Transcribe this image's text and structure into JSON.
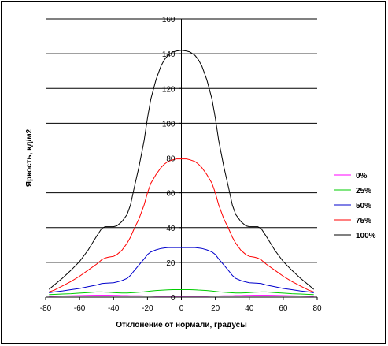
{
  "chart_data": {
    "type": "line",
    "title": "",
    "xlabel": "Отклонение от нормали, градусы",
    "ylabel": "Яркость, кд/м2",
    "xlim": [
      -80,
      80
    ],
    "ylim": [
      0,
      160
    ],
    "x_ticks": [
      -80,
      -60,
      -40,
      -20,
      0,
      20,
      40,
      60,
      80
    ],
    "y_ticks": [
      0,
      20,
      40,
      60,
      80,
      100,
      120,
      140,
      160
    ],
    "grid": "horizontal",
    "legend_position": "right",
    "x": [
      -78,
      -75,
      -70,
      -65,
      -60,
      -55,
      -50,
      -47,
      -45,
      -43,
      -40,
      -38,
      -35,
      -32,
      -30,
      -28,
      -25,
      -22,
      -20,
      -18,
      -15,
      -12,
      -10,
      -8,
      -5,
      -3,
      0,
      3,
      5,
      8,
      10,
      12,
      15,
      18,
      20,
      22,
      25,
      28,
      30,
      32,
      35,
      38,
      40,
      43,
      45,
      47,
      50,
      55,
      60,
      65,
      70,
      75,
      78
    ],
    "series": [
      {
        "name": "0%",
        "color": "#ff00ff",
        "values": [
          0.5,
          0.6,
          0.7,
          0.8,
          0.9,
          1.0,
          1.1,
          1.1,
          1.1,
          1.1,
          1.0,
          1.0,
          0.9,
          0.9,
          0.8,
          0.8,
          0.8,
          0.7,
          0.7,
          0.7,
          0.6,
          0.6,
          0.6,
          0.6,
          0.6,
          0.6,
          0.6,
          0.6,
          0.6,
          0.6,
          0.6,
          0.6,
          0.6,
          0.7,
          0.7,
          0.7,
          0.8,
          0.8,
          0.8,
          0.9,
          0.9,
          1.0,
          1.0,
          1.1,
          1.1,
          1.1,
          1.1,
          1.0,
          0.9,
          0.8,
          0.7,
          0.6,
          0.5
        ]
      },
      {
        "name": "25%",
        "color": "#00cc00",
        "values": [
          1.5,
          1.6,
          1.8,
          2.0,
          2.3,
          2.6,
          3.0,
          3.0,
          2.9,
          2.8,
          2.6,
          2.5,
          2.4,
          2.4,
          2.5,
          2.6,
          2.8,
          3.1,
          3.3,
          3.5,
          3.8,
          4.0,
          4.1,
          4.2,
          4.3,
          4.3,
          4.3,
          4.3,
          4.3,
          4.2,
          4.1,
          4.0,
          3.8,
          3.5,
          3.3,
          3.1,
          2.8,
          2.6,
          2.5,
          2.4,
          2.4,
          2.5,
          2.6,
          2.8,
          2.9,
          3.0,
          3.0,
          2.6,
          2.3,
          2.0,
          1.8,
          1.6,
          1.5
        ]
      },
      {
        "name": "50%",
        "color": "#0000cc",
        "values": [
          2.5,
          3.0,
          3.6,
          4.3,
          5.0,
          6.0,
          7.0,
          7.8,
          8.0,
          8.1,
          8.3,
          8.7,
          9.5,
          10.8,
          12.5,
          15.0,
          18.5,
          22.0,
          24.5,
          26.0,
          27.2,
          28.0,
          28.3,
          28.5,
          28.5,
          28.5,
          28.5,
          28.5,
          28.5,
          28.5,
          28.3,
          28.0,
          27.2,
          26.0,
          24.5,
          22.0,
          18.5,
          15.0,
          12.5,
          10.8,
          9.5,
          8.7,
          8.3,
          8.1,
          8.0,
          7.8,
          7.0,
          6.0,
          5.0,
          4.3,
          3.6,
          3.0,
          2.5
        ]
      },
      {
        "name": "75%",
        "color": "#ff0000",
        "values": [
          3.0,
          4.0,
          6.5,
          9.0,
          12.0,
          15.5,
          19.0,
          21.5,
          22.5,
          23.0,
          23.5,
          24.5,
          27.0,
          31.0,
          34.5,
          39.0,
          45.0,
          53.0,
          60.0,
          65.5,
          70.5,
          74.5,
          76.5,
          78.0,
          79.0,
          79.5,
          79.5,
          79.5,
          79.0,
          78.0,
          76.5,
          74.5,
          70.5,
          65.5,
          60.0,
          53.0,
          45.0,
          39.0,
          34.5,
          31.0,
          27.0,
          24.5,
          23.5,
          23.0,
          22.5,
          21.5,
          19.0,
          15.5,
          12.0,
          9.0,
          6.5,
          4.0,
          3.0
        ]
      },
      {
        "name": "100%",
        "color": "#000000",
        "values": [
          4.5,
          7.0,
          11.0,
          15.5,
          20.5,
          27.0,
          35.0,
          39.5,
          40.5,
          40.5,
          40.5,
          41.0,
          43.5,
          47.5,
          53.0,
          62.0,
          75.0,
          90.0,
          103.0,
          114.0,
          125.0,
          133.0,
          136.5,
          139.0,
          141.0,
          141.5,
          142.0,
          141.5,
          141.0,
          139.0,
          136.5,
          133.0,
          125.0,
          114.0,
          103.0,
          90.0,
          75.0,
          62.0,
          53.0,
          47.5,
          43.5,
          41.0,
          40.5,
          40.5,
          40.5,
          39.5,
          35.0,
          27.0,
          20.5,
          15.5,
          11.0,
          7.0,
          4.5
        ]
      }
    ]
  }
}
